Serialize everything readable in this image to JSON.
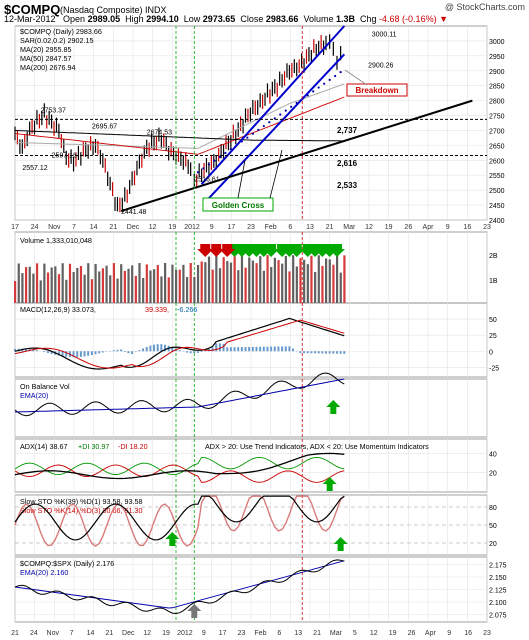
{
  "header": {
    "symbol": "$COMPQ",
    "exchange": "(Nasdaq Composite) INDX",
    "watermark": "@ StockCharts.com",
    "date": "12-Mar-2012",
    "open_label": "Open",
    "open": "2989.05",
    "high_label": "High",
    "high": "2994.10",
    "low_label": "Low",
    "low": "2973.65",
    "close_label": "Close",
    "close": "2983.66",
    "volume_label": "Volume",
    "volume": "1.3B",
    "chg_label": "Chg",
    "chg": "-4.68 (-0.16%)"
  },
  "colors": {
    "price_up": "#000000",
    "price_down": "#cc0000",
    "channel": "#0000cc",
    "support": "#000000",
    "ma20": "#aaaaaa",
    "ma50": "#cc0000",
    "ma200": "#000000",
    "volume_up": "#606060",
    "volume_down": "#d63a3a",
    "green_arrow": "#00aa00",
    "red_arrow": "#cc0000",
    "highlight_box": "#ddddff"
  },
  "chart_data": [
    {
      "panel": "price",
      "type": "bar",
      "legend": [
        "$COMPQ (Daily) 2983.66",
        "SAR(0.02,0.2) 2902.15",
        "MA(20) 2955.85",
        "MA(50) 2847.57",
        "MA(200) 2676.94"
      ],
      "ylim": [
        2400,
        3050
      ],
      "yticks": [
        2400,
        2450,
        2500,
        2550,
        2600,
        2650,
        2700,
        2750,
        2800,
        2850,
        2900,
        2950,
        3000
      ],
      "price_path": [
        [
          0,
          2685
        ],
        [
          4,
          2640
        ],
        [
          8,
          2700
        ],
        [
          12,
          2730
        ],
        [
          16,
          2753
        ],
        [
          20,
          2725
        ],
        [
          24,
          2700
        ],
        [
          28,
          2610
        ],
        [
          32,
          2595
        ],
        [
          36,
          2620
        ],
        [
          40,
          2640
        ],
        [
          44,
          2650
        ],
        [
          48,
          2600
        ],
        [
          52,
          2520
        ],
        [
          56,
          2441
        ],
        [
          60,
          2470
        ],
        [
          64,
          2530
        ],
        [
          68,
          2590
        ],
        [
          72,
          2640
        ],
        [
          76,
          2660
        ],
        [
          80,
          2675
        ],
        [
          84,
          2635
        ],
        [
          88,
          2615
        ],
        [
          92,
          2600
        ],
        [
          96,
          2575
        ],
        [
          98,
          2530
        ],
        [
          102,
          2560
        ],
        [
          106,
          2580
        ],
        [
          110,
          2600
        ],
        [
          114,
          2640
        ],
        [
          118,
          2670
        ],
        [
          122,
          2700
        ],
        [
          126,
          2740
        ],
        [
          130,
          2770
        ],
        [
          134,
          2790
        ],
        [
          138,
          2820
        ],
        [
          142,
          2840
        ],
        [
          146,
          2870
        ],
        [
          150,
          2900
        ],
        [
          154,
          2910
        ],
        [
          158,
          2930
        ],
        [
          162,
          2960
        ],
        [
          166,
          2980
        ],
        [
          170,
          2990
        ],
        [
          172,
          3000
        ],
        [
          174,
          2970
        ],
        [
          176,
          2930
        ],
        [
          178,
          2950
        ],
        [
          180,
          2983
        ]
      ],
      "annotations": [
        {
          "text": "2753.37"
        },
        {
          "text": "2695.67"
        },
        {
          "text": "2674.53"
        },
        {
          "text": "2597.16"
        },
        {
          "text": "2557.12"
        },
        {
          "text": "2441.48"
        },
        {
          "text": "2516.61"
        },
        {
          "text": "3000.11"
        },
        {
          "text": "2900.26"
        },
        {
          "text": "Breakdown"
        },
        {
          "text": "Golden Cross"
        },
        {
          "text": "2,737"
        },
        {
          "text": "2,616"
        },
        {
          "text": "2,533"
        }
      ]
    },
    {
      "panel": "volume",
      "type": "bar",
      "legend": "Volume 1,333,010,048",
      "yticks": [
        "2B",
        "1B"
      ]
    },
    {
      "panel": "macd",
      "type": "line",
      "legend": [
        "MACD(12,26,9) 33.073,",
        "39.339,",
        "-6.266"
      ],
      "yticks": [
        50,
        25,
        0,
        -25
      ],
      "ylim": [
        -40,
        75
      ]
    },
    {
      "panel": "obv",
      "type": "line",
      "legend": [
        "On Balance Vol",
        "EMA(20)"
      ]
    },
    {
      "panel": "adx",
      "type": "line",
      "legend": [
        "ADX(14) 38.67",
        "+DI 30.97",
        "-DI 18.20"
      ],
      "note": "ADX > 20: Use Trend Indicators, ADX < 20: Use Momentum Indicators",
      "yticks": [
        40,
        20
      ],
      "ylim": [
        0,
        55
      ]
    },
    {
      "panel": "sto",
      "type": "line",
      "legend": [
        "Slow STO %K(39) %D(1) 93.58, 93.58",
        "Slow STO %K(14) %D(3) 80.66, 61.30"
      ],
      "yticks": [
        80,
        50,
        20
      ],
      "ylim": [
        0,
        100
      ]
    },
    {
      "panel": "ratio",
      "type": "line",
      "legend": [
        "$COMPQ:$SPX (Daily) 2.176",
        "EMA(20) 2.160"
      ],
      "yticks": [
        2.175,
        2.15,
        2.125,
        2.1,
        2.075
      ],
      "ylim": [
        2.06,
        2.19
      ]
    }
  ],
  "xaxis": {
    "top_labels": [
      "17",
      "24",
      "Nov",
      "7",
      "14",
      "21",
      "Dec",
      "12",
      "19",
      "2012",
      "9",
      "17",
      "23",
      "Feb",
      "6",
      "13",
      "21",
      "Mar",
      "12",
      "19",
      "26",
      "Apr",
      "9",
      "16",
      "23"
    ],
    "bottom_labels": [
      "21",
      "24",
      "Nov",
      "7",
      "14",
      "21",
      "Dec",
      "12",
      "19",
      "2012",
      "9",
      "17",
      "23",
      "Feb",
      "6",
      "13",
      "21",
      "Mar",
      "5",
      "12",
      "19",
      "26",
      "Apr",
      "9",
      "16",
      "23"
    ]
  }
}
